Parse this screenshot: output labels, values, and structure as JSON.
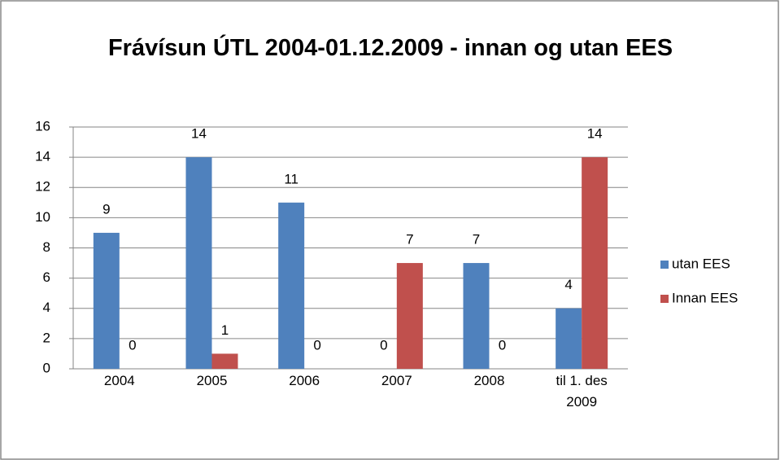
{
  "chart_data": {
    "type": "bar",
    "title": "Frávísun ÚTL 2004-01.12.2009 - innan og utan EES",
    "categories": [
      "2004",
      "2005",
      "2006",
      "2007",
      "2008",
      "til 1. des 2009"
    ],
    "series": [
      {
        "name": "utan EES",
        "color": "#4f81bd",
        "values": [
          9,
          14,
          11,
          0,
          7,
          4
        ]
      },
      {
        "name": "Innan EES",
        "color": "#c0504d",
        "values": [
          0,
          1,
          0,
          7,
          0,
          14
        ]
      }
    ],
    "ylim": [
      0,
      16
    ],
    "yticks": [
      0,
      2,
      4,
      6,
      8,
      10,
      12,
      14,
      16
    ],
    "grid": true,
    "legend": "right"
  }
}
